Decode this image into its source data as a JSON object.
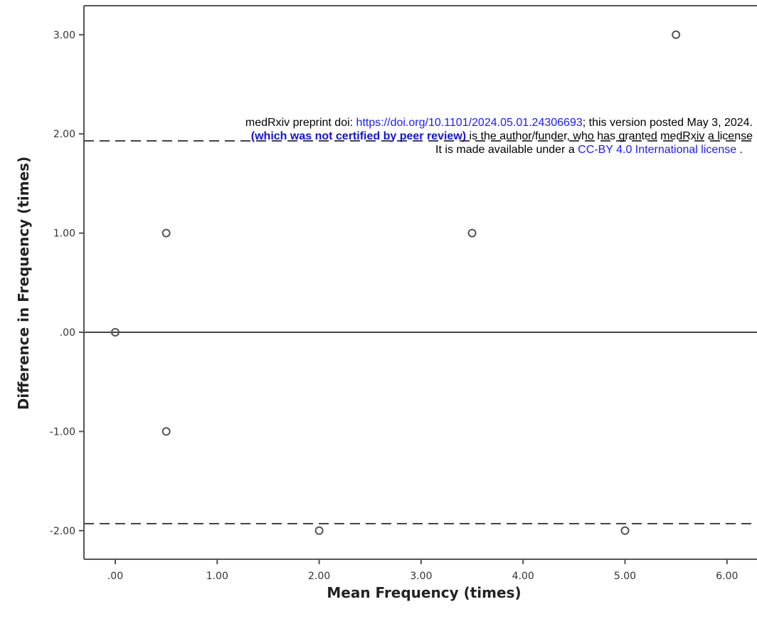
{
  "chart_data": {
    "type": "scatter",
    "xlabel": "Mean Frequency (times)",
    "ylabel": "Difference in Frequency (times)",
    "xlim": [
      -0.3,
      6.3
    ],
    "ylim": [
      -2.3,
      3.3
    ],
    "x_ticks": [
      0,
      1,
      2,
      3,
      4,
      5,
      6
    ],
    "x_tick_labels": [
      ".00",
      "1.00",
      "2.00",
      "3.00",
      "4.00",
      "5.00",
      "6.00"
    ],
    "y_ticks": [
      3,
      2,
      1,
      0,
      -1,
      -2
    ],
    "y_tick_labels": [
      "3.00",
      "2.00",
      "1.00",
      ".00",
      "-1.00",
      "-2.00"
    ],
    "grid": false,
    "points": [
      {
        "x": 0.0,
        "y": 0.0
      },
      {
        "x": 0.5,
        "y": 1.0
      },
      {
        "x": 0.5,
        "y": -1.0
      },
      {
        "x": 2.0,
        "y": -2.0
      },
      {
        "x": 3.5,
        "y": 1.0
      },
      {
        "x": 5.0,
        "y": -2.0
      },
      {
        "x": 5.5,
        "y": 3.0
      }
    ],
    "reference_lines": [
      {
        "style": "solid",
        "y": 0.0
      },
      {
        "style": "dashed",
        "y": 1.93
      },
      {
        "style": "dashed",
        "y": -1.93
      }
    ]
  },
  "banner": {
    "line1_prefix": "medRxiv preprint doi: ",
    "line1_link": "https://doi.org/10.1101/2024.05.01.24306693",
    "line1_suffix": "; this version posted May 3, 2024.",
    "line2_bold": "(which was not certified by peer review)",
    "line2_rest": " is the author/funder, who has granted medRxiv a license",
    "line3_prefix": "It is made available under a ",
    "line3_link": "CC-BY 4.0 International license",
    "line3_suffix": " ."
  }
}
